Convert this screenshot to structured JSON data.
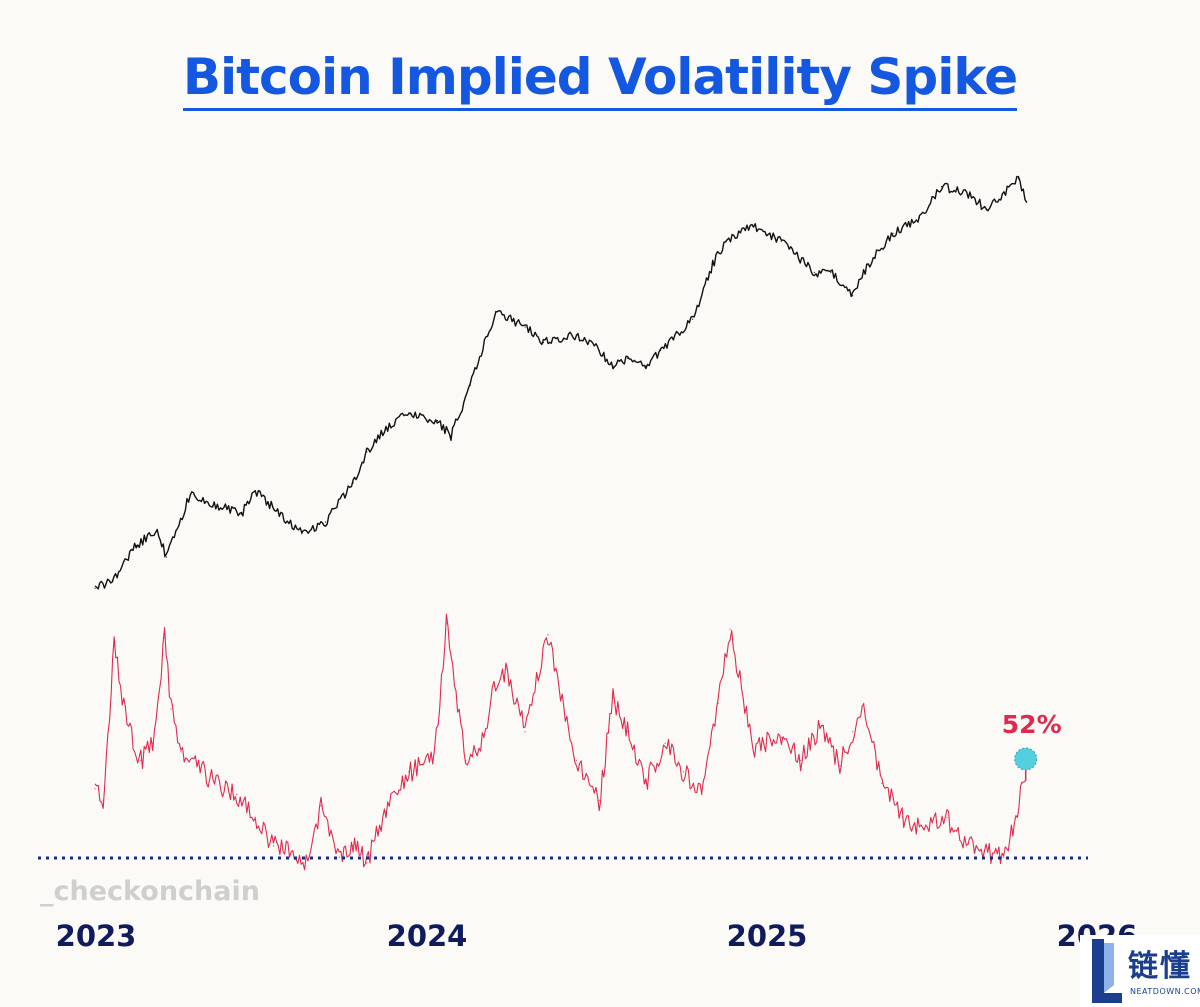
{
  "title": "Bitcoin Implied Volatility Spike",
  "watermark": "_checkonchain",
  "logo": {
    "cn": "链懂",
    "en": "NEATDOWN.COM"
  },
  "chart_data": [
    {
      "type": "line",
      "title": "Bitcoin Implied Volatility Spike",
      "xlabel": "",
      "ylabel": "",
      "x_ticks": [
        "2023",
        "2024",
        "2025",
        "2026"
      ],
      "xlim": [
        "2023-01-01",
        "2026-01-01"
      ],
      "ylim": [
        0,
        100
      ],
      "grid": false,
      "series": [
        {
          "color": "#111111",
          "x": [
            "2023-01-01",
            "2023-01-20",
            "2023-02-15",
            "2023-03-10",
            "2023-03-20",
            "2023-04-15",
            "2023-06-10",
            "2023-06-25",
            "2023-08-15",
            "2023-09-10",
            "2023-10-10",
            "2023-10-25",
            "2023-11-15",
            "2023-12-10",
            "2024-01-10",
            "2024-01-25",
            "2024-02-15",
            "2024-03-05",
            "2024-03-14",
            "2024-04-15",
            "2024-05-05",
            "2024-06-10",
            "2024-07-05",
            "2024-07-20",
            "2024-08-05",
            "2024-08-25",
            "2024-09-10",
            "2024-10-15",
            "2024-11-06",
            "2024-11-20",
            "2024-12-17",
            "2025-01-20",
            "2025-02-25",
            "2025-03-15",
            "2025-04-08",
            "2025-04-25",
            "2025-05-22",
            "2025-06-20",
            "2025-07-14",
            "2025-08-14",
            "2025-09-01",
            "2025-10-06",
            "2025-10-15"
          ],
          "values": [
            3,
            5,
            14,
            18,
            11,
            27,
            22,
            28,
            17,
            20,
            30,
            38,
            44,
            48,
            46,
            42,
            55,
            68,
            74,
            70,
            66,
            68,
            64,
            60,
            62,
            60,
            64,
            72,
            86,
            92,
            96,
            92,
            84,
            84,
            78,
            86,
            94,
            98,
            106,
            104,
            100,
            108,
            102
          ]
        },
        {
          "color": "#e0294e",
          "x": [
            "2023-01-01",
            "2023-01-10",
            "2023-01-22",
            "2023-02-05",
            "2023-02-20",
            "2023-03-05",
            "2023-03-18",
            "2023-03-25",
            "2023-04-05",
            "2023-05-10",
            "2023-06-05",
            "2023-06-25",
            "2023-07-15",
            "2023-08-05",
            "2023-08-18",
            "2023-09-05",
            "2023-09-25",
            "2023-10-10",
            "2023-10-25",
            "2023-11-15",
            "2023-12-10",
            "2024-01-05",
            "2024-01-11",
            "2024-01-20",
            "2024-02-10",
            "2024-03-01",
            "2024-03-12",
            "2024-03-25",
            "2024-04-15",
            "2024-05-10",
            "2024-06-10",
            "2024-07-05",
            "2024-07-20",
            "2024-08-05",
            "2024-08-25",
            "2024-09-15",
            "2024-10-05",
            "2024-10-25",
            "2024-11-12",
            "2024-11-25",
            "2024-12-20",
            "2025-01-20",
            "2025-02-10",
            "2025-03-05",
            "2025-03-25",
            "2025-04-08",
            "2025-04-20",
            "2025-05-10",
            "2025-06-01",
            "2025-06-25",
            "2025-07-20",
            "2025-08-10",
            "2025-08-30",
            "2025-09-20",
            "2025-10-05",
            "2025-10-10",
            "2025-10-14"
          ],
          "values": [
            32,
            28,
            82,
            55,
            42,
            48,
            85,
            60,
            45,
            35,
            30,
            22,
            12,
            10,
            4,
            26,
            8,
            12,
            6,
            24,
            38,
            42,
            55,
            90,
            42,
            50,
            68,
            74,
            52,
            86,
            42,
            28,
            64,
            52,
            34,
            48,
            38,
            30,
            62,
            88,
            46,
            50,
            42,
            54,
            40,
            52,
            62,
            34,
            22,
            18,
            22,
            12,
            10,
            8,
            22,
            34,
            35
          ]
        }
      ],
      "annotations": [
        {
          "text": "52%",
          "x": "2025-10-14",
          "y": 35
        }
      ]
    }
  ]
}
